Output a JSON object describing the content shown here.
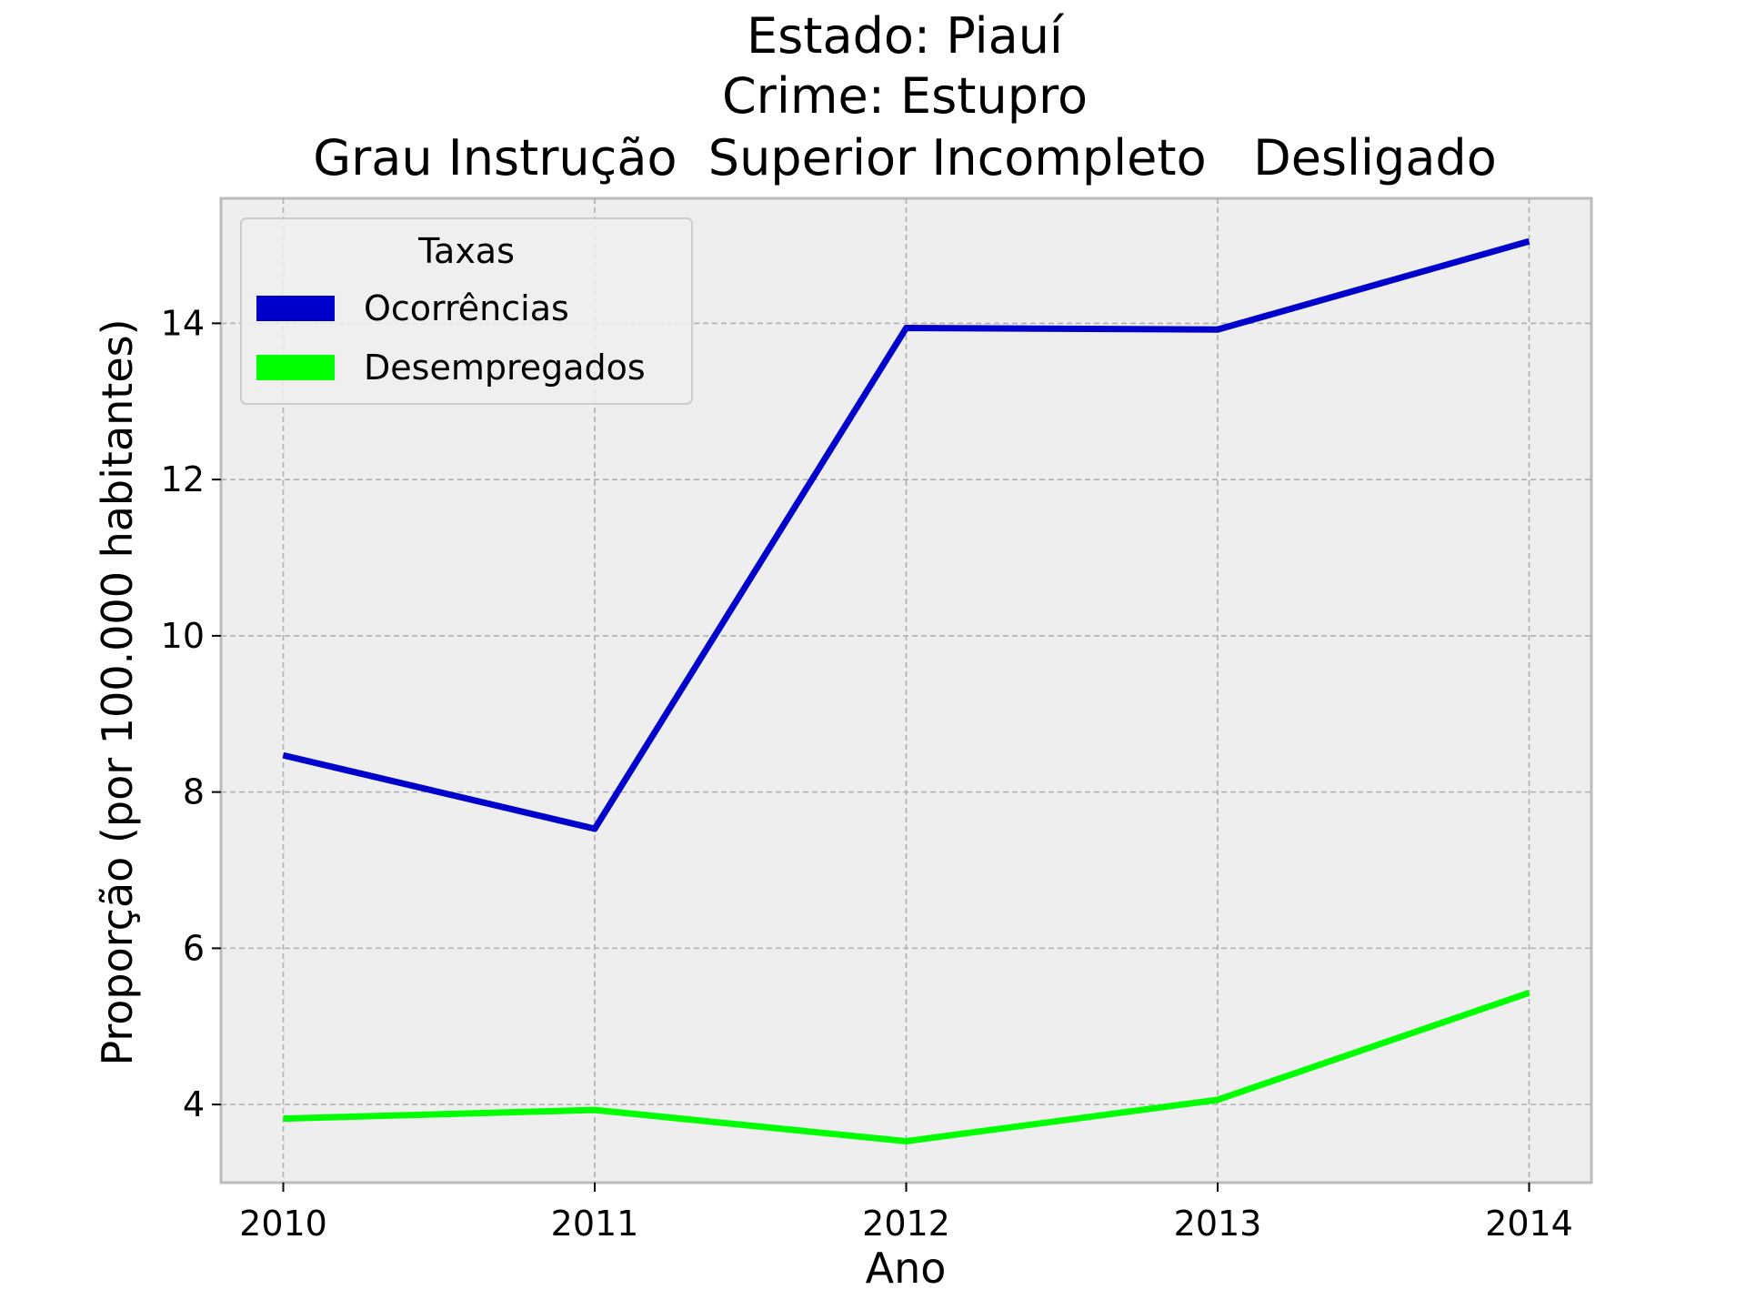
{
  "chart_data": {
    "type": "line",
    "title_lines": [
      "Estado: Piauí",
      "Crime: Estupro",
      "Grau Instrução  Superior Incompleto   Desligado"
    ],
    "xlabel": "Ano",
    "ylabel": "Proporção (por 100.000 habitantes)",
    "x": [
      2010,
      2011,
      2012,
      2013,
      2014
    ],
    "x_tick_labels": [
      "2010",
      "2011",
      "2012",
      "2013",
      "2014"
    ],
    "xlim": [
      2009.8,
      2014.2
    ],
    "ylim": [
      3.0,
      15.6
    ],
    "y_ticks": [
      4,
      6,
      8,
      10,
      12,
      14
    ],
    "y_tick_labels": [
      "4",
      "6",
      "8",
      "10",
      "12",
      "14"
    ],
    "grid": true,
    "legend": {
      "title": "Taxas",
      "placement": "top-left"
    },
    "series": [
      {
        "name": "Ocorrências",
        "color": "#0000cc",
        "values": [
          8.47,
          7.53,
          13.94,
          13.92,
          15.05
        ]
      },
      {
        "name": "Desempregados",
        "color": "#00ff00",
        "values": [
          3.82,
          3.93,
          3.53,
          4.06,
          5.43
        ]
      }
    ]
  }
}
